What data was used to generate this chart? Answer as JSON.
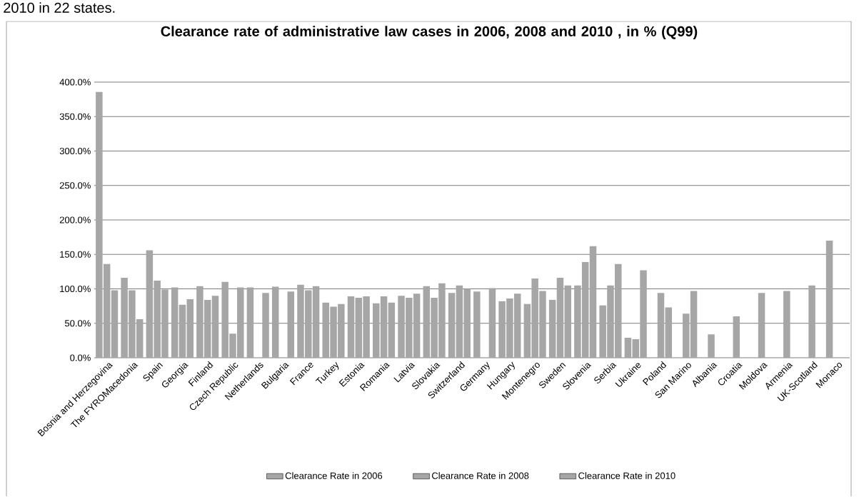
{
  "chart_data": {
    "type": "bar",
    "title": "Clearance rate of administrative law cases in 2006, 2008 and 2010 , in % (Q99)",
    "annotations": [
      "2010 in 22 states."
    ],
    "categories": [
      "Bosnia and Herzegovina",
      "The FYROMacedonia",
      "Spain",
      "Georgia",
      "Finland",
      "Czech Republic",
      "Netherlands",
      "Bulgaria",
      "France",
      "Turkey",
      "Estonia",
      "Romania",
      "Latvia",
      "Slovakia",
      "Switzerland",
      "Germany",
      "Hungary",
      "Montenegro",
      "Sweden",
      "Slovenia",
      "Serbia",
      "Ukraine",
      "Poland",
      "San Marino",
      "Albania",
      "Croatia",
      "Moldova",
      "Armenia",
      "UK-Scotland",
      "Monaco"
    ],
    "series": [
      {
        "name": "Clearance Rate in 2006",
        "color": "#a6a6a6",
        "values": [
          386,
          116,
          156,
          102,
          104,
          110,
          102,
          103,
          106,
          80,
          89,
          79,
          90,
          104,
          94,
          96,
          82,
          78,
          84,
          105,
          76,
          29,
          null,
          null,
          null,
          null,
          null,
          null,
          null,
          170
        ]
      },
      {
        "name": "Clearance Rate in 2008",
        "color": "#a6a6a6",
        "values": [
          136,
          98,
          112,
          77,
          84,
          35,
          null,
          null,
          98,
          74,
          87,
          89,
          87,
          87,
          105,
          null,
          86,
          115,
          116,
          139,
          105,
          27,
          94,
          64,
          34,
          60,
          94,
          97,
          105,
          null
        ]
      },
      {
        "name": "Clearance Rate in 2010",
        "color": "#a6a6a6",
        "values": [
          98,
          56,
          99,
          85,
          90,
          102,
          94,
          96,
          104,
          78,
          89,
          80,
          93,
          108,
          100,
          101,
          93,
          97,
          105,
          162,
          136,
          127,
          73,
          97,
          null,
          null,
          null,
          null,
          null,
          null
        ]
      }
    ],
    "ylim": [
      0,
      400
    ],
    "yticks": [
      {
        "value": 0,
        "label": "0.0%"
      },
      {
        "value": 50,
        "label": "50.0%"
      },
      {
        "value": 100,
        "label": "100.0%"
      },
      {
        "value": 150,
        "label": "150.0%"
      },
      {
        "value": 200,
        "label": "200.0%"
      },
      {
        "value": 250,
        "label": "250.0%"
      },
      {
        "value": 300,
        "label": "300.0%"
      },
      {
        "value": 350,
        "label": "350.0%"
      },
      {
        "value": 400,
        "label": "400.0%"
      }
    ],
    "grid": "y",
    "legend": "bottom"
  }
}
